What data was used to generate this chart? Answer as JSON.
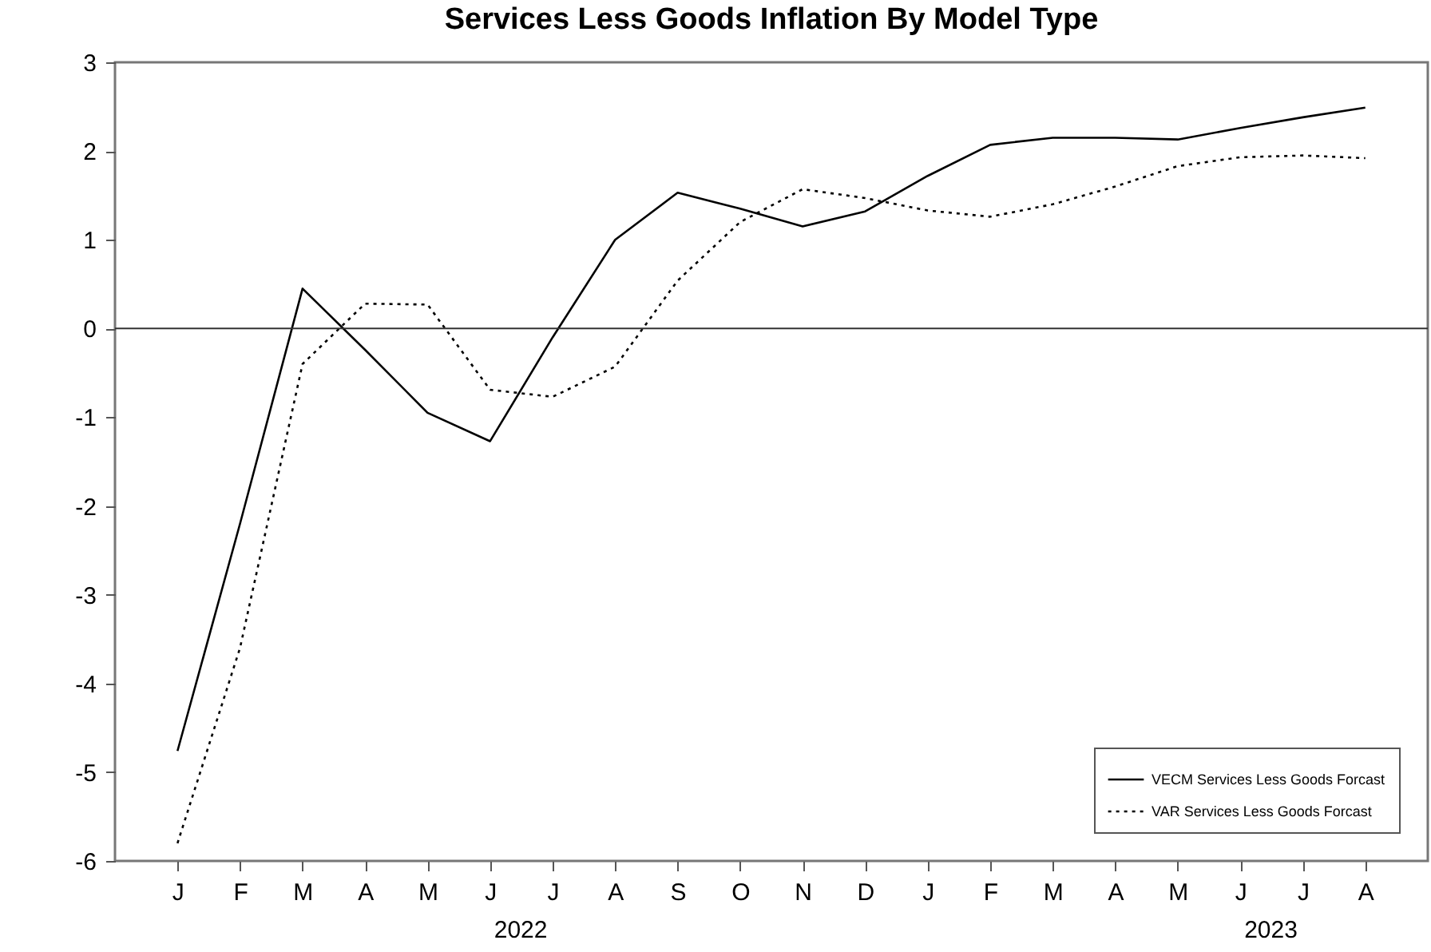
{
  "chart_data": {
    "type": "line",
    "title": "Services Less Goods Inflation By Model Type",
    "categories": [
      "J",
      "F",
      "M",
      "A",
      "M",
      "J",
      "J",
      "A",
      "S",
      "O",
      "N",
      "D",
      "J",
      "F",
      "M",
      "A",
      "M",
      "J",
      "J",
      "A"
    ],
    "series": [
      {
        "name": "VECM Services Less Goods Forcast",
        "color": "#000000",
        "line_style": "solid",
        "values": [
          -4.76,
          -2.2,
          0.45,
          -0.24,
          -0.95,
          -1.27,
          -0.1,
          1.0,
          1.53,
          1.35,
          1.15,
          1.32,
          1.72,
          2.07,
          2.15,
          2.15,
          2.13,
          2.26,
          2.38,
          2.49
        ]
      },
      {
        "name": "VAR Services Less Goods Forcast",
        "color": "#000000",
        "line_style": "dotted",
        "values": [
          -5.8,
          -3.6,
          -0.4,
          0.28,
          0.27,
          -0.69,
          -0.77,
          -0.43,
          0.54,
          1.2,
          1.57,
          1.47,
          1.33,
          1.26,
          1.4,
          1.6,
          1.83,
          1.93,
          1.95,
          1.92
        ]
      }
    ],
    "ylim": [
      -6,
      3
    ],
    "yticks": [
      -6,
      -5,
      -4,
      -3,
      -2,
      -1,
      0,
      1,
      2,
      3
    ],
    "ref_lines": [
      {
        "axis": "y",
        "value": 0
      }
    ],
    "annotations": [
      "2022",
      "2023"
    ],
    "legend": "bottom right",
    "grid": false
  }
}
